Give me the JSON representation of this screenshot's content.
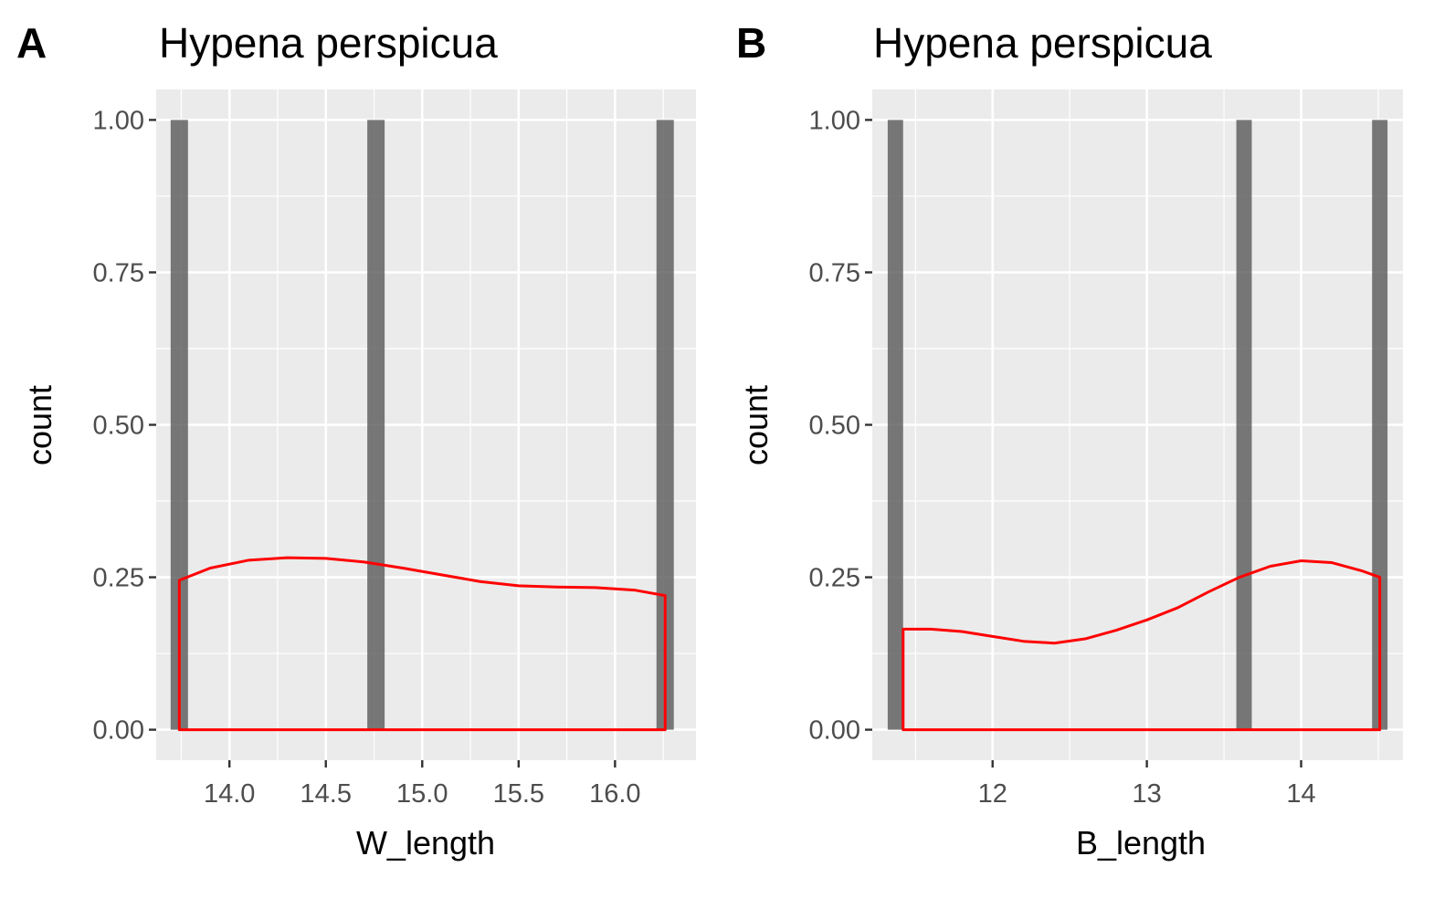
{
  "colors": {
    "panel_background": "#ebebeb",
    "grid": "#ffffff",
    "bar_fill": "#595959",
    "bar_opacity": 0.8,
    "density_line": "#ff0000"
  },
  "chart_data": [
    {
      "tag": "A",
      "type": "bar",
      "title": "Hypena perspicua",
      "xlabel": "W_length",
      "ylabel": "count",
      "xlim": [
        13.62,
        16.42
      ],
      "ylim": [
        -0.05,
        1.05
      ],
      "xticks": [
        "14.0",
        "14.5",
        "15.0",
        "15.5",
        "16.0"
      ],
      "xtick_values": [
        14.0,
        14.5,
        15.0,
        15.5,
        16.0
      ],
      "yticks": [
        "0.00",
        "0.25",
        "0.50",
        "0.75",
        "1.00"
      ],
      "ytick_values": [
        0.0,
        0.25,
        0.5,
        0.75,
        1.0
      ],
      "bars": [
        {
          "x": 13.74,
          "count": 1
        },
        {
          "x": 14.76,
          "count": 1
        },
        {
          "x": 16.26,
          "count": 1
        }
      ],
      "bar_width": 0.09,
      "density": {
        "x": [
          13.74,
          13.9,
          14.1,
          14.3,
          14.5,
          14.7,
          14.9,
          15.1,
          15.3,
          15.5,
          15.7,
          15.9,
          16.1,
          16.26
        ],
        "y": [
          0.245,
          0.265,
          0.278,
          0.282,
          0.281,
          0.275,
          0.265,
          0.254,
          0.243,
          0.236,
          0.234,
          0.233,
          0.229,
          0.22
        ]
      }
    },
    {
      "tag": "B",
      "type": "bar",
      "title": "Hypena perspicua",
      "xlabel": "B_length",
      "ylabel": "count",
      "xlim": [
        11.22,
        14.66
      ],
      "ylim": [
        -0.05,
        1.05
      ],
      "xticks": [
        "12",
        "13",
        "14"
      ],
      "xtick_values": [
        12,
        13,
        14
      ],
      "yticks": [
        "0.00",
        "0.25",
        "0.50",
        "0.75",
        "1.00"
      ],
      "ytick_values": [
        0.0,
        0.25,
        0.5,
        0.75,
        1.0
      ],
      "bars": [
        {
          "x": 11.37,
          "count": 1
        },
        {
          "x": 13.63,
          "count": 1
        },
        {
          "x": 14.51,
          "count": 1
        }
      ],
      "bar_width": 0.1,
      "density": {
        "x": [
          11.42,
          11.6,
          11.8,
          12.0,
          12.2,
          12.4,
          12.6,
          12.8,
          13.0,
          13.2,
          13.4,
          13.6,
          13.8,
          14.0,
          14.2,
          14.4,
          14.51
        ],
        "y": [
          0.165,
          0.165,
          0.161,
          0.153,
          0.145,
          0.142,
          0.149,
          0.163,
          0.18,
          0.2,
          0.226,
          0.25,
          0.268,
          0.277,
          0.274,
          0.26,
          0.25
        ]
      }
    }
  ]
}
